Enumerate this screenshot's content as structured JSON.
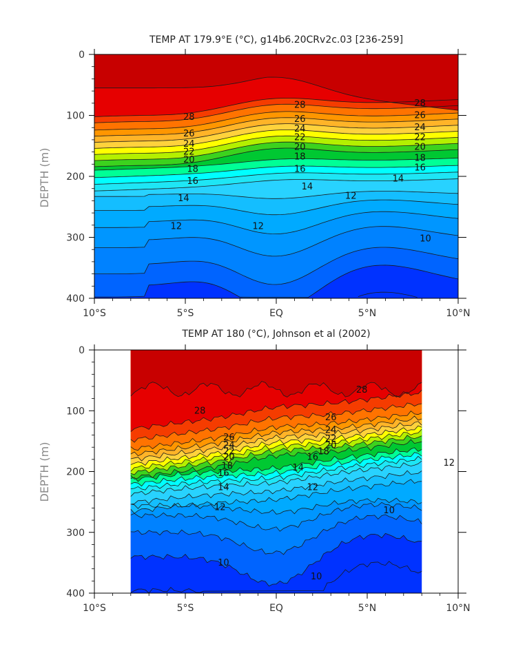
{
  "chart_data": [
    {
      "type": "contour",
      "title": "TEMP AT 179.9°E (°C), g14b6.20CRv2c.03 [236-259]",
      "xlabel": "",
      "ylabel": "DEPTH (m)",
      "xlim": [
        -10,
        10
      ],
      "ylim": [
        400,
        0
      ],
      "x_ticks": [
        -10,
        -5,
        0,
        5,
        10
      ],
      "x_tick_labels": [
        "10°S",
        "5°S",
        "EQ",
        "5°N",
        "10°N"
      ],
      "y_ticks": [
        0,
        100,
        200,
        300,
        400
      ],
      "y_tick_labels": [
        "0",
        "100",
        "200",
        "300",
        "400"
      ],
      "data_extent_x": [
        -10,
        10
      ],
      "contour_levels": [
        9,
        10,
        11,
        12,
        13,
        14,
        15,
        16,
        17,
        18,
        19,
        20,
        21,
        22,
        23,
        24,
        25,
        26,
        27,
        28,
        29
      ],
      "contour_interval": 1,
      "labeled_isotherms": [
        {
          "label": "28",
          "x": -4.8,
          "y": 103
        },
        {
          "label": "26",
          "x": -4.8,
          "y": 130
        },
        {
          "label": "24",
          "x": -4.8,
          "y": 147
        },
        {
          "label": "22",
          "x": -4.8,
          "y": 160
        },
        {
          "label": "20",
          "x": -4.8,
          "y": 173
        },
        {
          "label": "18",
          "x": -4.6,
          "y": 188
        },
        {
          "label": "16",
          "x": -4.6,
          "y": 208
        },
        {
          "label": "14",
          "x": -5.1,
          "y": 236
        },
        {
          "label": "12",
          "x": -5.5,
          "y": 282
        },
        {
          "label": "12",
          "x": -1.0,
          "y": 282
        },
        {
          "label": "28",
          "x": 1.3,
          "y": 83
        },
        {
          "label": "26",
          "x": 1.3,
          "y": 106
        },
        {
          "label": "24",
          "x": 1.3,
          "y": 122
        },
        {
          "label": "22",
          "x": 1.3,
          "y": 136
        },
        {
          "label": "20",
          "x": 1.3,
          "y": 152
        },
        {
          "label": "18",
          "x": 1.3,
          "y": 168
        },
        {
          "label": "16",
          "x": 1.3,
          "y": 188
        },
        {
          "label": "14",
          "x": 1.7,
          "y": 217
        },
        {
          "label": "28",
          "x": 7.9,
          "y": 80
        },
        {
          "label": "26",
          "x": 7.9,
          "y": 100
        },
        {
          "label": "24",
          "x": 7.9,
          "y": 120
        },
        {
          "label": "22",
          "x": 7.9,
          "y": 136
        },
        {
          "label": "20",
          "x": 7.9,
          "y": 152
        },
        {
          "label": "18",
          "x": 7.9,
          "y": 170
        },
        {
          "label": "16",
          "x": 7.9,
          "y": 186
        },
        {
          "label": "14",
          "x": 6.7,
          "y": 204
        },
        {
          "label": "12",
          "x": 4.1,
          "y": 232
        },
        {
          "label": "10",
          "x": 8.2,
          "y": 302
        }
      ]
    },
    {
      "type": "contour",
      "title": "TEMP AT 180 (°C), Johnson et al (2002)",
      "xlabel": "",
      "ylabel": "DEPTH (m)",
      "xlim": [
        -10,
        10
      ],
      "ylim": [
        400,
        0
      ],
      "x_ticks": [
        -10,
        -5,
        0,
        5,
        10
      ],
      "x_tick_labels": [
        "10°S",
        "5°S",
        "EQ",
        "5°N",
        "10°N"
      ],
      "y_ticks": [
        0,
        100,
        200,
        300,
        400
      ],
      "y_tick_labels": [
        "0",
        "100",
        "200",
        "300",
        "400"
      ],
      "data_extent_x": [
        -8,
        8
      ],
      "contour_levels": [
        9,
        10,
        11,
        12,
        13,
        14,
        15,
        16,
        17,
        18,
        19,
        20,
        21,
        22,
        23,
        24,
        25,
        26,
        27,
        28,
        29
      ],
      "contour_interval": 1,
      "labeled_isotherms": [
        {
          "label": "28",
          "x": -4.2,
          "y": 100
        },
        {
          "label": "26",
          "x": -2.6,
          "y": 144
        },
        {
          "label": "24",
          "x": -2.6,
          "y": 157
        },
        {
          "label": "22",
          "x": -2.6,
          "y": 167
        },
        {
          "label": "20",
          "x": -2.6,
          "y": 176
        },
        {
          "label": "18",
          "x": -2.7,
          "y": 191
        },
        {
          "label": "16",
          "x": -2.9,
          "y": 203
        },
        {
          "label": "14",
          "x": -2.9,
          "y": 226
        },
        {
          "label": "12",
          "x": -3.1,
          "y": 259
        },
        {
          "label": "10",
          "x": -2.9,
          "y": 350
        },
        {
          "label": "28",
          "x": 4.7,
          "y": 66
        },
        {
          "label": "26",
          "x": 3.0,
          "y": 111
        },
        {
          "label": "24",
          "x": 3.0,
          "y": 132
        },
        {
          "label": "22",
          "x": 3.0,
          "y": 146
        },
        {
          "label": "20",
          "x": 3.0,
          "y": 157
        },
        {
          "label": "18",
          "x": 2.6,
          "y": 167
        },
        {
          "label": "16",
          "x": 2.0,
          "y": 176
        },
        {
          "label": "14",
          "x": 1.2,
          "y": 194
        },
        {
          "label": "12",
          "x": 2.0,
          "y": 226
        },
        {
          "label": "12",
          "x": 9.5,
          "y": 186
        },
        {
          "label": "10",
          "x": 6.2,
          "y": 264
        },
        {
          "label": "10",
          "x": 2.2,
          "y": 373
        }
      ]
    }
  ],
  "colors": {
    "29": "#c80000",
    "28": "#e60000",
    "27": "#f53c00",
    "26": "#ff7300",
    "25": "#ff9600",
    "24": "#ffb428",
    "23": "#ffd23c",
    "22": "#ffff00",
    "21": "#b4f000",
    "20": "#3cd21e",
    "19": "#00c832",
    "18": "#00ff96",
    "17": "#00ffff",
    "16": "#1ee6f5",
    "15": "#28d2ff",
    "14": "#14beff",
    "13": "#00aaff",
    "12": "#0096ff",
    "11": "#0082ff",
    "10": "#0064ff",
    "9": "#0032ff"
  }
}
